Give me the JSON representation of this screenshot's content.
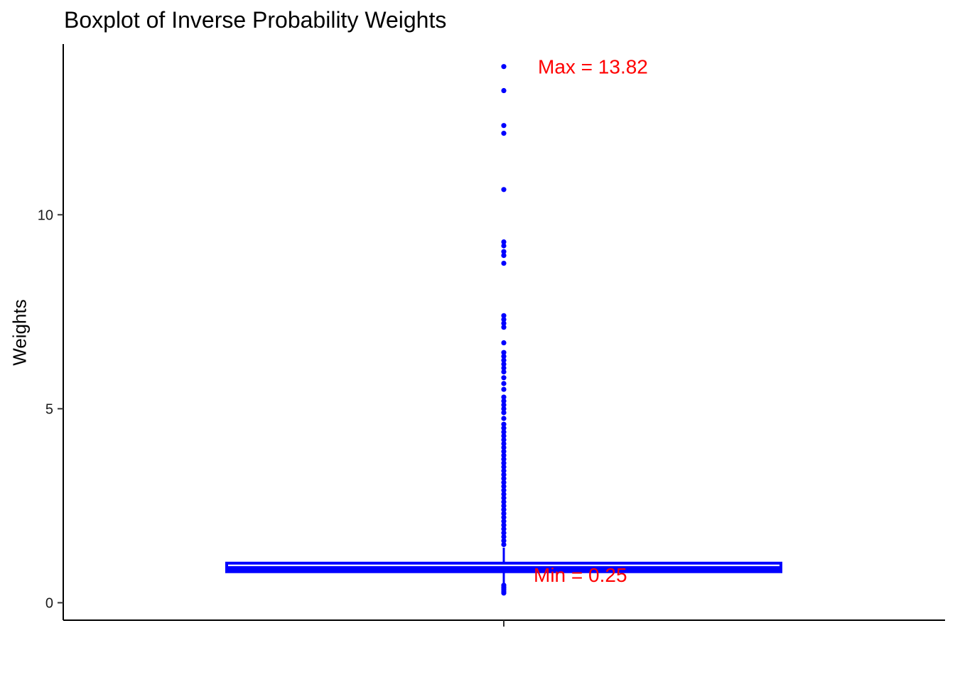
{
  "chart_data": {
    "type": "boxplot",
    "title": "Boxplot of Inverse Probability Weights",
    "xlabel": "",
    "ylabel": "Weights",
    "ylim": [
      -0.45,
      14.4
    ],
    "yticks": [
      0,
      5,
      10
    ],
    "grid": false,
    "colors": {
      "box": "#0000ff",
      "points": "#0000ff",
      "annotation": "#ff0000"
    },
    "box": {
      "q1": 0.8,
      "median": 0.88,
      "q3": 1.02,
      "whisker_low": 0.25,
      "whisker_high": 1.42,
      "min": 0.25,
      "max": 13.82
    },
    "outliers": [
      13.82,
      13.2,
      12.3,
      12.1,
      10.65,
      9.3,
      9.2,
      9.05,
      8.95,
      8.75,
      7.4,
      7.3,
      7.2,
      7.1,
      6.7,
      6.45,
      6.35,
      6.25,
      6.15,
      6.05,
      5.95,
      5.8,
      5.65,
      5.5,
      5.3,
      5.2,
      5.1,
      5.0,
      4.9,
      4.75,
      4.6,
      4.5,
      4.4,
      4.3,
      4.2,
      4.1,
      4.0,
      3.9,
      3.8,
      3.7,
      3.6,
      3.5,
      3.4,
      3.3,
      3.2,
      3.1,
      3.0,
      2.9,
      2.8,
      2.7,
      2.6,
      2.5,
      2.4,
      2.3,
      2.2,
      2.1,
      2.0,
      1.9,
      1.8,
      1.7,
      1.6,
      1.5,
      0.45,
      0.4,
      0.35,
      0.3,
      0.25
    ],
    "annotations": [
      {
        "text": "Max = 13.82",
        "value": 13.82
      },
      {
        "text": "Min = 0.25",
        "value": 0.25
      }
    ]
  }
}
